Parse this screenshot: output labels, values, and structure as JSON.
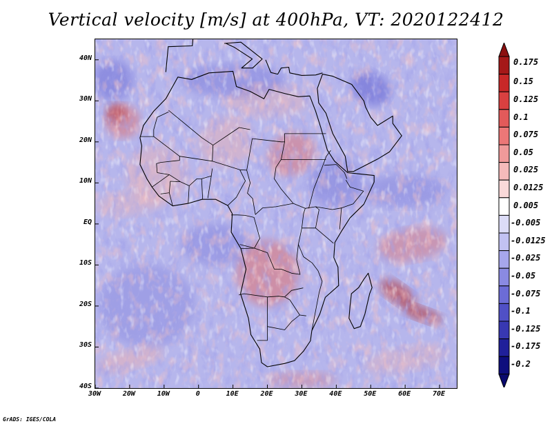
{
  "title": "Vertical velocity [m/s] at 400hPa, VT: 2020122412",
  "footer": "GrADS: IGES/COLA",
  "map": {
    "lon_range": [
      -30,
      75
    ],
    "lat_range": [
      -40,
      45
    ],
    "lat_ticks": [
      {
        "value": 40,
        "label": "40N"
      },
      {
        "value": 30,
        "label": "30N"
      },
      {
        "value": 20,
        "label": "20N"
      },
      {
        "value": 10,
        "label": "10N"
      },
      {
        "value": 0,
        "label": "EQ"
      },
      {
        "value": -10,
        "label": "10S"
      },
      {
        "value": -20,
        "label": "20S"
      },
      {
        "value": -30,
        "label": "30S"
      },
      {
        "value": -40,
        "label": "40S"
      }
    ],
    "lon_ticks": [
      {
        "value": -30,
        "label": "30W"
      },
      {
        "value": -20,
        "label": "20W"
      },
      {
        "value": -10,
        "label": "10W"
      },
      {
        "value": 0,
        "label": "0"
      },
      {
        "value": 10,
        "label": "10E"
      },
      {
        "value": 20,
        "label": "20E"
      },
      {
        "value": 30,
        "label": "30E"
      },
      {
        "value": 40,
        "label": "40E"
      },
      {
        "value": 50,
        "label": "50E"
      },
      {
        "value": 60,
        "label": "60E"
      },
      {
        "value": 70,
        "label": "70E"
      }
    ],
    "africa_outline": [
      [
        -17,
        21
      ],
      [
        -16,
        24
      ],
      [
        -13,
        27.5
      ],
      [
        -9.5,
        30.5
      ],
      [
        -6,
        35.8
      ],
      [
        -2,
        35.2
      ],
      [
        3,
        36.8
      ],
      [
        10,
        37.2
      ],
      [
        11,
        33.5
      ],
      [
        15,
        32.3
      ],
      [
        19,
        30.5
      ],
      [
        20.5,
        32.8
      ],
      [
        25,
        31.8
      ],
      [
        29,
        31
      ],
      [
        32.3,
        31.2
      ],
      [
        34,
        27.5
      ],
      [
        35.5,
        23.5
      ],
      [
        37.4,
        18
      ],
      [
        39.5,
        15.3
      ],
      [
        43.3,
        12.5
      ],
      [
        51,
        11.8
      ],
      [
        51,
        10.2
      ],
      [
        48,
        4.8
      ],
      [
        44,
        1.5
      ],
      [
        41.5,
        -1.8
      ],
      [
        39.6,
        -4.5
      ],
      [
        39.3,
        -8.2
      ],
      [
        40.5,
        -10.5
      ],
      [
        40.7,
        -15
      ],
      [
        36.8,
        -17.9
      ],
      [
        35.2,
        -22
      ],
      [
        32.9,
        -26
      ],
      [
        32.5,
        -28.5
      ],
      [
        30.5,
        -31
      ],
      [
        27.9,
        -33.3
      ],
      [
        25,
        -34
      ],
      [
        20,
        -34.8
      ],
      [
        18.3,
        -33.8
      ],
      [
        17.8,
        -30.5
      ],
      [
        15.2,
        -27
      ],
      [
        14.5,
        -23
      ],
      [
        12.2,
        -17
      ],
      [
        13.8,
        -11
      ],
      [
        12.3,
        -6
      ],
      [
        9.5,
        -2
      ],
      [
        9.8,
        2.5
      ],
      [
        8.5,
        4.5
      ],
      [
        5,
        6
      ],
      [
        1,
        6
      ],
      [
        -3,
        5
      ],
      [
        -7.5,
        4.4
      ],
      [
        -11.5,
        6.8
      ],
      [
        -13.5,
        9
      ],
      [
        -15,
        11
      ],
      [
        -17,
        14.5
      ],
      [
        -16.5,
        19
      ],
      [
        -17,
        21
      ]
    ],
    "madagascar_outline": [
      [
        49.3,
        -12
      ],
      [
        50.4,
        -15.5
      ],
      [
        49.7,
        -17
      ],
      [
        48.3,
        -22
      ],
      [
        47,
        -25
      ],
      [
        45.2,
        -25.5
      ],
      [
        43.7,
        -23
      ],
      [
        44,
        -20
      ],
      [
        44.4,
        -17
      ],
      [
        46.5,
        -15.5
      ],
      [
        48,
        -13.5
      ],
      [
        49.3,
        -12
      ]
    ],
    "arabia_outline": [
      [
        34.9,
        29.5
      ],
      [
        37,
        27
      ],
      [
        39,
        22
      ],
      [
        42.6,
        16.5
      ],
      [
        43.3,
        12.8
      ],
      [
        45,
        12.8
      ],
      [
        52,
        15.8
      ],
      [
        55.5,
        17.6
      ],
      [
        59,
        21.5
      ],
      [
        56.4,
        24.5
      ],
      [
        56.4,
        26.3
      ],
      [
        52,
        24
      ],
      [
        50,
        26
      ],
      [
        48.5,
        28.5
      ],
      [
        48,
        30
      ],
      [
        44.5,
        34
      ],
      [
        39,
        36
      ],
      [
        36,
        36.5
      ],
      [
        34.5,
        33
      ],
      [
        34.9,
        29.5
      ]
    ],
    "europe_outline": [
      [
        -9.5,
        37
      ],
      [
        -8.8,
        43.2
      ],
      [
        -1.8,
        43.4
      ],
      [
        -1.5,
        46.2
      ],
      [
        -4.5,
        48.3
      ],
      [
        -1,
        50
      ],
      [
        2.5,
        51
      ]
    ],
    "italy_outline": [
      [
        7.5,
        44
      ],
      [
        12.3,
        44.3
      ],
      [
        18.5,
        40.2
      ],
      [
        15.7,
        38
      ],
      [
        12.5,
        38
      ],
      [
        15.6,
        40.2
      ],
      [
        10.5,
        43
      ],
      [
        8,
        44
      ]
    ],
    "greece_turkey_outline": [
      [
        19.5,
        40
      ],
      [
        21,
        36.9
      ],
      [
        23,
        36.5
      ],
      [
        24,
        38
      ],
      [
        26.2,
        38.2
      ],
      [
        26.5,
        36.8
      ],
      [
        30,
        36.2
      ],
      [
        34,
        36.3
      ],
      [
        36,
        36.8
      ]
    ],
    "internal_borders": [
      [
        [
          -8.7,
          27.7
        ],
        [
          -4.8,
          25
        ],
        [
          1,
          21
        ],
        [
          4.2,
          19.2
        ],
        [
          11.8,
          23.5
        ],
        [
          15,
          23
        ]
      ],
      [
        [
          -17,
          21.3
        ],
        [
          -13,
          21.3
        ],
        [
          -13,
          23
        ],
        [
          -12,
          26
        ],
        [
          -8.7,
          27.3
        ]
      ],
      [
        [
          -13,
          21.3
        ],
        [
          -5.5,
          16.5
        ],
        [
          -5.5,
          15.5
        ],
        [
          -11,
          15
        ],
        [
          -12.2,
          14.7
        ],
        [
          -12,
          12.5
        ]
      ],
      [
        [
          -5.5,
          16.5
        ],
        [
          4,
          15.3
        ],
        [
          4.2,
          19.2
        ]
      ],
      [
        [
          4,
          15.3
        ],
        [
          12,
          13.2
        ],
        [
          14,
          13.1
        ],
        [
          15.6,
          20.8
        ],
        [
          24,
          20
        ],
        [
          25,
          20
        ],
        [
          24,
          15.7
        ],
        [
          22.5,
          13.8
        ],
        [
          22,
          11
        ],
        [
          24,
          8.5
        ],
        [
          27.5,
          5
        ],
        [
          31,
          3.8
        ],
        [
          34,
          4.2
        ]
      ],
      [
        [
          25,
          20
        ],
        [
          25,
          22
        ],
        [
          37,
          22
        ]
      ],
      [
        [
          24,
          15.7
        ],
        [
          37,
          15.7
        ]
      ],
      [
        [
          14,
          13.1
        ],
        [
          15,
          10
        ],
        [
          14.2,
          7.5
        ],
        [
          15.7,
          6.2
        ],
        [
          16.5,
          2.3
        ],
        [
          18.6,
          3.9
        ],
        [
          22.5,
          4.2
        ],
        [
          27.5,
          5
        ]
      ],
      [
        [
          9.5,
          2.2
        ],
        [
          11.3,
          2.2
        ],
        [
          13.5,
          2.1
        ],
        [
          16.1,
          1.6
        ],
        [
          17.8,
          -3.5
        ],
        [
          16.2,
          -5.9
        ],
        [
          12.3,
          -6
        ]
      ],
      [
        [
          12,
          -5
        ],
        [
          16.2,
          -5.9
        ],
        [
          20,
          -7
        ],
        [
          22,
          -11
        ],
        [
          24,
          -11
        ],
        [
          27,
          -12
        ],
        [
          29.5,
          -12.3
        ],
        [
          28.5,
          -8.7
        ],
        [
          29,
          -5
        ],
        [
          30,
          -1
        ],
        [
          30.5,
          2.5
        ],
        [
          31,
          3.8
        ]
      ],
      [
        [
          29,
          -5
        ],
        [
          30.5,
          -8
        ],
        [
          33,
          -9.5
        ],
        [
          34.7,
          -11.4
        ],
        [
          35.9,
          -14
        ],
        [
          35,
          -16.8
        ],
        [
          32.9,
          -26
        ]
      ],
      [
        [
          30,
          -1
        ],
        [
          34,
          -1
        ],
        [
          37.5,
          -3.5
        ],
        [
          39.2,
          -4.7
        ]
      ],
      [
        [
          34,
          -1
        ],
        [
          35,
          3.5
        ],
        [
          34,
          4.2
        ],
        [
          38.9,
          3.5
        ],
        [
          41.5,
          3.9
        ],
        [
          41,
          -1.3
        ]
      ],
      [
        [
          11.7,
          -17.3
        ],
        [
          13.2,
          -17
        ],
        [
          20,
          -17.8
        ],
        [
          23.3,
          -17.6
        ],
        [
          25,
          -17.8
        ],
        [
          27,
          -16.2
        ],
        [
          30.4,
          -15.6
        ]
      ],
      [
        [
          20,
          -17.8
        ],
        [
          20,
          -22
        ],
        [
          20,
          -25
        ],
        [
          20,
          -28.4
        ],
        [
          17,
          -28.4
        ]
      ],
      [
        [
          20,
          -25
        ],
        [
          25,
          -25.8
        ],
        [
          27,
          -23.8
        ],
        [
          29.4,
          -22.2
        ],
        [
          31.3,
          -22.4
        ]
      ],
      [
        [
          25,
          -17.8
        ],
        [
          26.5,
          -18.5
        ],
        [
          29.4,
          -22.2
        ]
      ],
      [
        [
          -12,
          12.5
        ],
        [
          -8.5,
          12
        ],
        [
          -5.3,
          10.3
        ],
        [
          -2.7,
          9.3
        ],
        [
          -0.5,
          11
        ],
        [
          0.9,
          11
        ],
        [
          3.7,
          11.7
        ],
        [
          4,
          13.5
        ]
      ],
      [
        [
          -2.7,
          9.3
        ],
        [
          -3,
          5
        ]
      ],
      [
        [
          0.9,
          11
        ],
        [
          1.2,
          6
        ]
      ],
      [
        [
          3.7,
          11.7
        ],
        [
          2.7,
          6.3
        ]
      ],
      [
        [
          12,
          13.2
        ],
        [
          13.6,
          10.5
        ],
        [
          12.4,
          8.7
        ],
        [
          11,
          6.5
        ],
        [
          8.5,
          4.5
        ]
      ],
      [
        [
          32,
          3.8
        ],
        [
          33.5,
          8.6
        ],
        [
          36,
          14
        ],
        [
          37.1,
          16.5
        ],
        [
          38.4,
          17.9
        ]
      ],
      [
        [
          36.5,
          14.3
        ],
        [
          40,
          14.5
        ],
        [
          42.4,
          12.5
        ],
        [
          43.1,
          11
        ]
      ],
      [
        [
          42.8,
          10.7
        ],
        [
          44,
          9
        ],
        [
          47.9,
          8
        ],
        [
          44.9,
          4.9
        ],
        [
          41.5,
          3.9
        ]
      ],
      [
        [
          -5.3,
          10.3
        ],
        [
          -8.2,
          10.4
        ],
        [
          -8.5,
          7.6
        ],
        [
          -7.5,
          4.4
        ]
      ],
      [
        [
          -8.5,
          7.6
        ],
        [
          -11,
          7.3
        ]
      ],
      [
        [
          -13.5,
          9
        ],
        [
          -11,
          10.5
        ],
        [
          -8.5,
          12
        ]
      ]
    ]
  },
  "colorbar": {
    "labels": [
      "0.175",
      "0.15",
      "0.125",
      "0.1",
      "0.075",
      "0.05",
      "0.025",
      "0.0125",
      "0.005",
      "-0.005",
      "-0.0125",
      "-0.025",
      "-0.05",
      "-0.075",
      "-0.1",
      "-0.125",
      "-0.175",
      "-0.2"
    ],
    "colors": [
      "#a51818",
      "#c82828",
      "#d94040",
      "#e25a5a",
      "#ec7777",
      "#f09a9a",
      "#f5baba",
      "#f9d9d9",
      "#ffffff",
      "#dcdcf7",
      "#c2c2f2",
      "#a6a6ec",
      "#8a8ae2",
      "#6c6cd6",
      "#5050c6",
      "#3838b2",
      "#20209a",
      "#0e0e7d"
    ],
    "top_color": "#8b1010",
    "bottom_color": "#0a0a6e"
  },
  "palette": {
    "ocean_base": "#b6b6ec",
    "dark_blue": "#5e5ed2",
    "light_red": "#eeb0b0",
    "mid_red": "#e07070",
    "dark_red": "#b42a2a",
    "coastline": "#000000"
  }
}
